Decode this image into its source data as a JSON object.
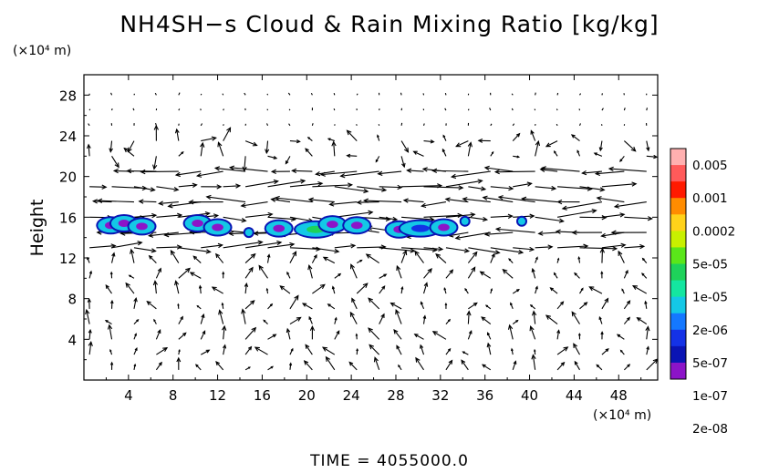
{
  "chart_data": {
    "type": "heatmap",
    "title": "NH4SH−s Cloud & Rain Mixing Ratio [kg/kg]",
    "ylabel": "Height",
    "y_unit": "(×10⁴ m)",
    "x_unit": "(×10⁴ m)",
    "xlim": [
      0,
      51.5
    ],
    "ylim": [
      0,
      30
    ],
    "x_ticks": [
      "4",
      "8",
      "12",
      "16",
      "20",
      "24",
      "28",
      "32",
      "36",
      "40",
      "44",
      "48"
    ],
    "y_ticks": [
      "4",
      "8",
      "12",
      "16",
      "20",
      "24",
      "28"
    ],
    "colorbar": {
      "labels": [
        "0.005",
        "0.001",
        "0.0002",
        "5e-05",
        "1e-05",
        "2e-06",
        "5e-07",
        "1e-07",
        "2e-08"
      ],
      "colors": [
        "#ffb0b0",
        "#ff5a5a",
        "#ff1a00",
        "#ff8c00",
        "#ffd21a",
        "#c8f000",
        "#5ae61a",
        "#1ed25a",
        "#14e6a0",
        "#14c8e6",
        "#1478ff",
        "#1432e6",
        "#0a14b4",
        "#8c14c8"
      ]
    },
    "cloud_cells": [
      {
        "x": 2.4,
        "y": 15.2,
        "value": "5e-07"
      },
      {
        "x": 3.6,
        "y": 15.4,
        "value": "5e-07"
      },
      {
        "x": 5.2,
        "y": 15.1,
        "value": "5e-07"
      },
      {
        "x": 10.2,
        "y": 15.4,
        "value": "5e-07"
      },
      {
        "x": 12.0,
        "y": 15.0,
        "value": "5e-07"
      },
      {
        "x": 14.8,
        "y": 14.5,
        "value": "1e-07"
      },
      {
        "x": 17.5,
        "y": 14.9,
        "value": "5e-07"
      },
      {
        "x": 20.8,
        "y": 14.8,
        "value": "5e-05"
      },
      {
        "x": 22.3,
        "y": 15.3,
        "value": "5e-07"
      },
      {
        "x": 24.5,
        "y": 15.2,
        "value": "5e-07"
      },
      {
        "x": 28.3,
        "y": 14.8,
        "value": "5e-07"
      },
      {
        "x": 30.2,
        "y": 14.9,
        "value": "2e-06"
      },
      {
        "x": 32.3,
        "y": 15.0,
        "value": "5e-07"
      },
      {
        "x": 34.2,
        "y": 15.6,
        "value": "1e-07"
      },
      {
        "x": 39.3,
        "y": 15.6,
        "value": "1e-07"
      }
    ],
    "wind_band": {
      "y_from": 12,
      "y_to": 20.5,
      "description": "strong horizontal flow arrows"
    },
    "time_label": "TIME  =  4055000.0"
  }
}
